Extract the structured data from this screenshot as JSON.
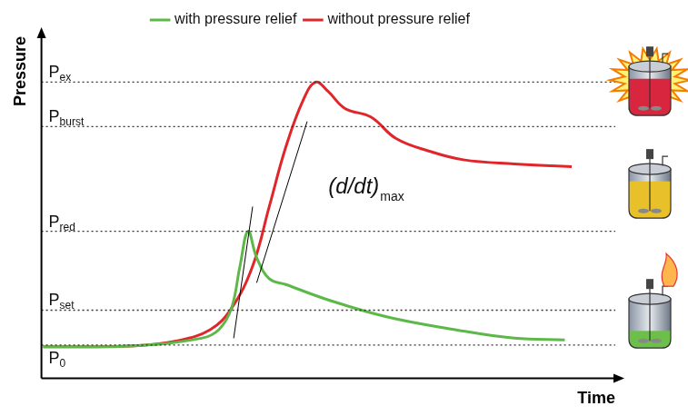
{
  "chart_data": {
    "type": "line",
    "x_label": "Time",
    "y_label": "Pressure",
    "xlim": [
      0,
      100
    ],
    "ylim": [
      0,
      100
    ],
    "tick_labels": false,
    "grid": false,
    "legend": "top",
    "series": [
      {
        "name": "with pressure relief",
        "color": "#5cb848",
        "x": [
          0.3,
          16.2,
          27.9,
          30.9,
          33.1,
          34.6,
          36.0,
          37.5,
          39.7,
          42.6,
          50.0,
          60.3,
          72.1,
          82.4,
          91.2
        ],
        "values": [
          9.2,
          9.5,
          11.7,
          14.2,
          20.4,
          32.8,
          43.0,
          35.3,
          29.1,
          27.4,
          22.9,
          17.9,
          14.2,
          11.7,
          11.2
        ]
      },
      {
        "name": "without pressure relief",
        "color": "#e0262b",
        "x": [
          0.3,
          16.2,
          23.5,
          29.4,
          33.1,
          36.8,
          39.7,
          42.6,
          45.6,
          47.8,
          50.0,
          52.9,
          57.4,
          61.8,
          67.6,
          73.5,
          82.4,
          92.4
        ],
        "values": [
          9.2,
          9.5,
          10.9,
          14.2,
          20.4,
          32.8,
          50.2,
          67.7,
          81.3,
          86.6,
          83.8,
          78.9,
          76.4,
          70.1,
          66.4,
          63.9,
          62.7,
          61.9
        ]
      }
    ],
    "reference_lines": [
      {
        "label": "P",
        "subscript": "ex",
        "y": 86.6
      },
      {
        "label": "P",
        "subscript": "burst",
        "y": 73.6
      },
      {
        "label": "P",
        "subscript": "red",
        "y": 43.0
      },
      {
        "label": "P",
        "subscript": "set",
        "y": 19.9
      },
      {
        "label": "P",
        "subscript": "0",
        "y": 9.7
      }
    ],
    "tangents": [
      {
        "x": [
          33.5,
          36.8
        ],
        "y": [
          11.7,
          50.2
        ]
      },
      {
        "x": [
          37.5,
          46.3
        ],
        "y": [
          27.9,
          75.1
        ]
      }
    ],
    "annotation": {
      "text": "(d/dt)",
      "subscript": "max"
    }
  }
}
